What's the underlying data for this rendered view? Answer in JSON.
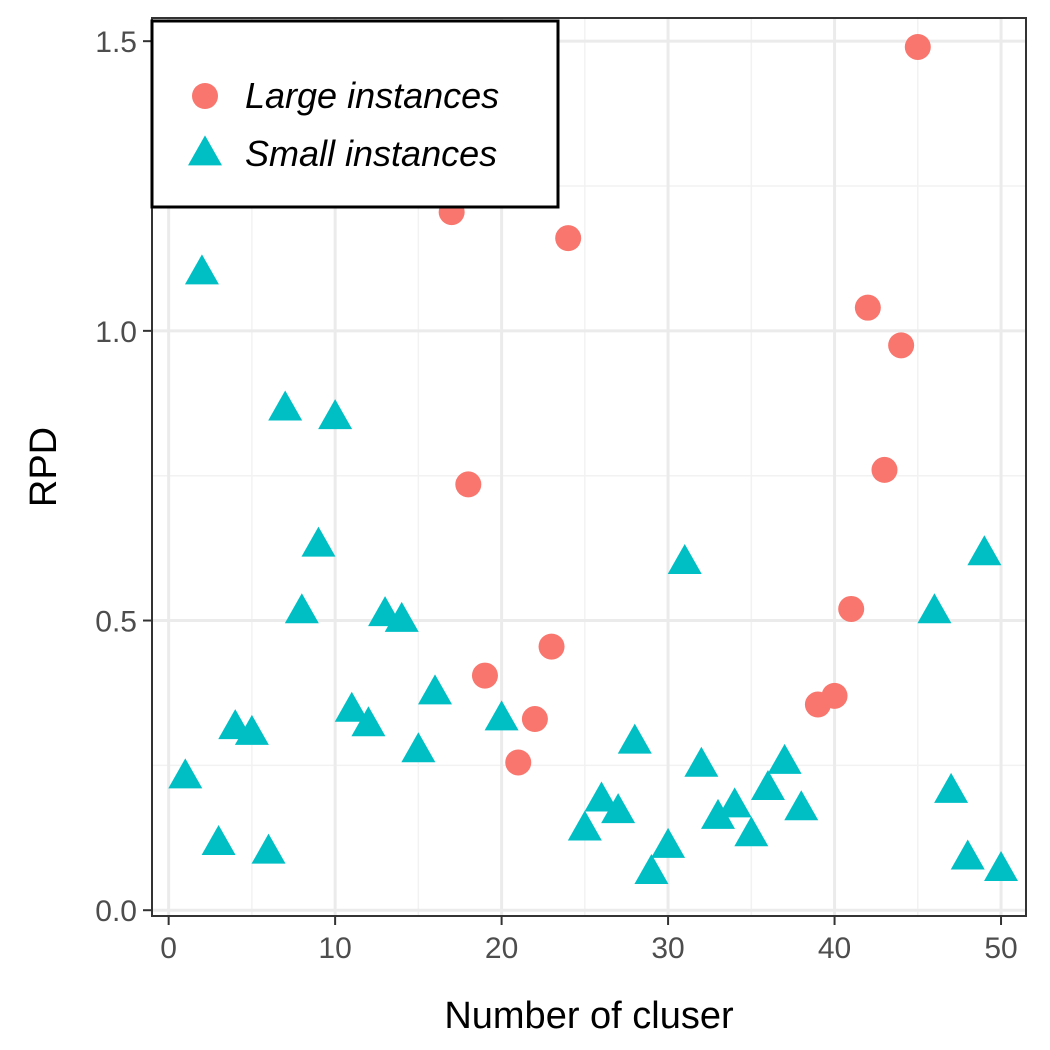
{
  "chart_data": {
    "type": "scatter",
    "title": "",
    "xlabel": "Number of cluser",
    "ylabel": "RPD",
    "xlim": [
      -1,
      51.5
    ],
    "ylim": [
      -0.01,
      1.54
    ],
    "x_ticks": [
      0,
      10,
      20,
      30,
      40,
      50
    ],
    "y_ticks": [
      0.0,
      0.5,
      1.0,
      1.5
    ],
    "x_tick_labels": [
      "0",
      "10",
      "20",
      "30",
      "40",
      "50"
    ],
    "y_tick_labels": [
      "0.0",
      "0.5",
      "1.0",
      "1.5"
    ],
    "grid": true,
    "legend_position": "top-left",
    "series": [
      {
        "name": "Large instances",
        "marker": "circle",
        "color": "#F8766D",
        "points": [
          [
            17,
            1.205
          ],
          [
            18,
            0.735
          ],
          [
            19,
            0.405
          ],
          [
            21,
            0.255
          ],
          [
            22,
            0.33
          ],
          [
            23,
            0.455
          ],
          [
            24,
            1.16
          ],
          [
            39,
            0.355
          ],
          [
            40,
            0.37
          ],
          [
            41,
            0.52
          ],
          [
            42,
            1.04
          ],
          [
            43,
            0.76
          ],
          [
            44,
            0.975
          ],
          [
            45,
            1.49
          ]
        ]
      },
      {
        "name": "Small instances",
        "marker": "triangle",
        "color": "#00BFC4",
        "points": [
          [
            1,
            0.23
          ],
          [
            2,
            1.1
          ],
          [
            3,
            0.115
          ],
          [
            4,
            0.315
          ],
          [
            5,
            0.305
          ],
          [
            6,
            0.1
          ],
          [
            7,
            0.865
          ],
          [
            8,
            0.515
          ],
          [
            9,
            0.63
          ],
          [
            10,
            0.85
          ],
          [
            11,
            0.345
          ],
          [
            12,
            0.32
          ],
          [
            13,
            0.51
          ],
          [
            14,
            0.5
          ],
          [
            15,
            0.275
          ],
          [
            16,
            0.375
          ],
          [
            20,
            0.33
          ],
          [
            25,
            0.14
          ],
          [
            26,
            0.19
          ],
          [
            27,
            0.17
          ],
          [
            28,
            0.29
          ],
          [
            29,
            0.065
          ],
          [
            30,
            0.11
          ],
          [
            31,
            0.6
          ],
          [
            32,
            0.25
          ],
          [
            33,
            0.16
          ],
          [
            34,
            0.18
          ],
          [
            35,
            0.13
          ],
          [
            36,
            0.21
          ],
          [
            37,
            0.255
          ],
          [
            38,
            0.175
          ],
          [
            46,
            0.515
          ],
          [
            47,
            0.205
          ],
          [
            48,
            0.09
          ],
          [
            49,
            0.615
          ],
          [
            50,
            0.07
          ]
        ]
      }
    ]
  }
}
